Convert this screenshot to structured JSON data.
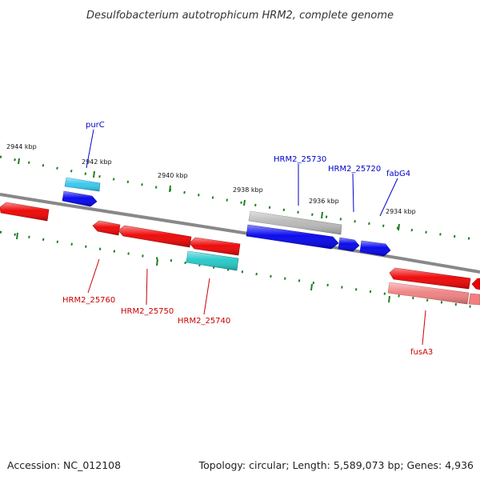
{
  "title": "Desulfobacterium autotrophicum HRM2, complete genome",
  "footer": {
    "accession": "Accession: NC_012108",
    "summary": "Topology: circular; Length: 5,589,073 bp; Genes: 4,936"
  },
  "colors": {
    "forward_gene": "#0000ee",
    "reverse_gene": "#ee0000",
    "backbone": "#888888",
    "tick": "#1e7f1e",
    "purc_gene": "#33c8ee",
    "reverse_rna": "#22c8c8",
    "pseudo_forward": "#b8b8b8",
    "pseudo_reverse": "#f08080"
  },
  "scale_labels": [
    "2944 kbp",
    "2942 kbp",
    "2940 kbp",
    "2938 kbp",
    "2936 kbp",
    "2934 kbp"
  ],
  "gene_labels": {
    "purC": "purC",
    "HRM2_25730": "HRM2_25730",
    "HRM2_25720": "HRM2_25720",
    "fabG4": "fabG4",
    "HRM2_25760": "HRM2_25760",
    "HRM2_25750": "HRM2_25750",
    "HRM2_25740": "HRM2_25740",
    "fusA3": "fusA3"
  }
}
